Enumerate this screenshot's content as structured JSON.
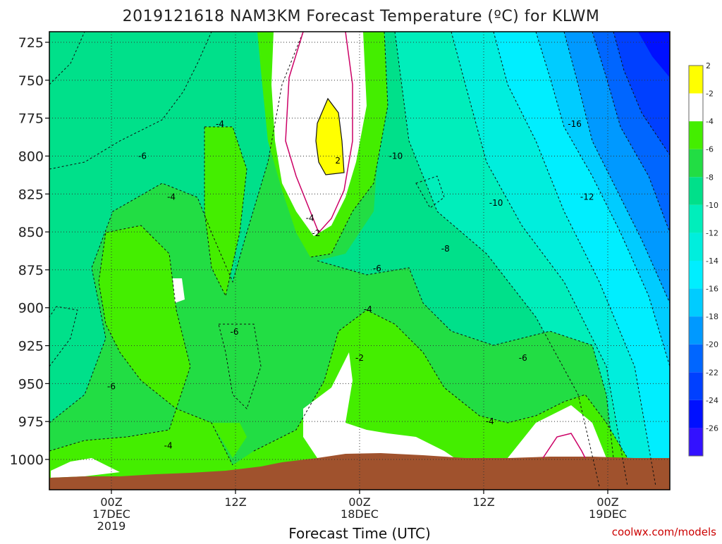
{
  "chart_data": {
    "type": "heatmap",
    "title": "2019121618 NAM3KM Forecast Temperature (ºC) for KLWM",
    "xlabel": "Forecast Time (UTC)",
    "ylabel": "",
    "y_axis": {
      "ticks": [
        725,
        750,
        775,
        800,
        825,
        850,
        875,
        900,
        925,
        950,
        975,
        1000
      ],
      "tick_labels": [
        "725",
        "750",
        "775",
        "800",
        "825",
        "850",
        "875",
        "900",
        "925",
        "950",
        "975",
        "1000"
      ],
      "range": [
        1020,
        715
      ]
    },
    "x_axis": {
      "range_hours": [
        -6,
        54
      ],
      "ticks": [
        {
          "hour": 0,
          "lines": [
            "00Z",
            "17DEC",
            "2019"
          ]
        },
        {
          "hour": 12,
          "lines": [
            "12Z"
          ]
        },
        {
          "hour": 24,
          "lines": [
            "00Z",
            "18DEC"
          ]
        },
        {
          "hour": 36,
          "lines": [
            "12Z"
          ]
        },
        {
          "hour": 48,
          "lines": [
            "00Z",
            "19DEC"
          ]
        }
      ]
    },
    "colorbar": {
      "labels": [
        "2",
        "-2",
        "-4",
        "-6",
        "-8",
        "-10",
        "-12",
        "-14",
        "-16",
        "-18",
        "-20",
        "-22",
        "-24",
        "-26"
      ],
      "colors": [
        "#ffff00",
        "#ffffff",
        "#44ee00",
        "#22dd44",
        "#00e08a",
        "#00eebb",
        "#00eedd",
        "#00eeff",
        "#00ccff",
        "#0099ff",
        "#0066ff",
        "#0040ff",
        "#0010ff",
        "#3311ff"
      ]
    },
    "contour_labels": [
      {
        "text": "-4",
        "hour": 10.5,
        "p": 779
      },
      {
        "text": "-6",
        "hour": 3,
        "p": 800
      },
      {
        "text": "-4",
        "hour": 5.8,
        "p": 827
      },
      {
        "text": "-10",
        "hour": 27.5,
        "p": 800
      },
      {
        "text": "-16",
        "hour": 44.8,
        "p": 779
      },
      {
        "text": "-12",
        "hour": 46,
        "p": 827
      },
      {
        "text": "-10",
        "hour": 37.2,
        "p": 831
      },
      {
        "text": "2",
        "hour": 21.9,
        "p": 803
      },
      {
        "text": "-4",
        "hour": 19.2,
        "p": 841
      },
      {
        "text": "-2",
        "hour": 19.8,
        "p": 851
      },
      {
        "text": "-8",
        "hour": 32.3,
        "p": 861
      },
      {
        "text": "-6",
        "hour": 25.7,
        "p": 874
      },
      {
        "text": "-4",
        "hour": 24.8,
        "p": 901
      },
      {
        "text": "-6",
        "hour": 11.9,
        "p": 916
      },
      {
        "text": "-2",
        "hour": 24,
        "p": 933
      },
      {
        "text": "-6",
        "hour": 39.8,
        "p": 933
      },
      {
        "text": "-6",
        "hour": 0,
        "p": 952
      },
      {
        "text": "-4",
        "hour": 36.6,
        "p": 975
      },
      {
        "text": "-4",
        "hour": 5.5,
        "p": 991
      }
    ],
    "terrain_color": "#a0522d",
    "grid": "dotted"
  },
  "watermark": "coolwx.com/models"
}
